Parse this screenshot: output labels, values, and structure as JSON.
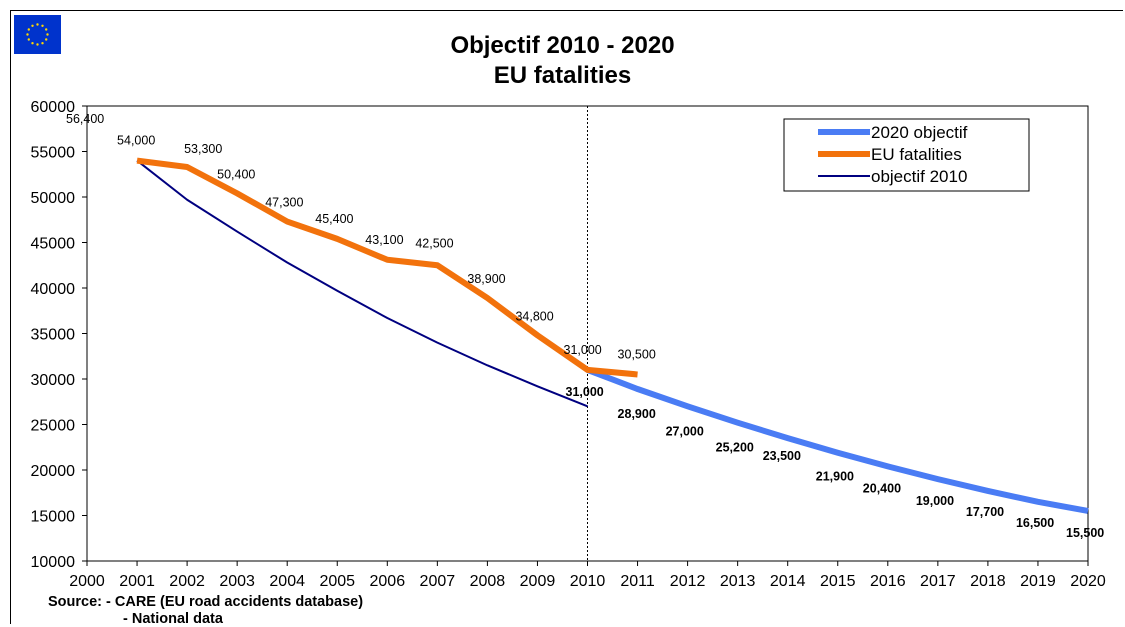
{
  "chart_data": {
    "type": "line",
    "title": "Objectif 2010 - 2020",
    "subtitle": "EU fatalities",
    "xlabel": "",
    "ylabel": "",
    "xlim": [
      2000,
      2020
    ],
    "ylim": [
      10000,
      60000
    ],
    "x_ticks": [
      2000,
      2001,
      2002,
      2003,
      2004,
      2005,
      2006,
      2007,
      2008,
      2009,
      2010,
      2011,
      2012,
      2013,
      2014,
      2015,
      2016,
      2017,
      2018,
      2019,
      2020
    ],
    "y_ticks": [
      10000,
      15000,
      20000,
      25000,
      30000,
      35000,
      40000,
      45000,
      50000,
      55000,
      60000
    ],
    "grid": false,
    "legend_position": "top-right",
    "reference_line_x": 2010,
    "series": [
      {
        "name": "2020 objectif",
        "color": "#4a7cf4",
        "x": [
          2010,
          2011,
          2012,
          2013,
          2014,
          2015,
          2016,
          2017,
          2018,
          2019,
          2020
        ],
        "values": [
          31000,
          28900,
          27000,
          25200,
          23500,
          21900,
          20400,
          19000,
          17700,
          16500,
          15500
        ],
        "labels": [
          "31,000",
          "28,900",
          "27,000",
          "25,200",
          "23,500",
          "21,900",
          "20,400",
          "19,000",
          "17,700",
          "16,500",
          "15,500"
        ]
      },
      {
        "name": "EU fatalities",
        "color": "#f2720c",
        "x": [
          2001,
          2002,
          2003,
          2004,
          2005,
          2006,
          2007,
          2008,
          2009,
          2010,
          2011
        ],
        "values": [
          54000,
          53300,
          50400,
          47300,
          45400,
          43100,
          42500,
          38900,
          34800,
          31000,
          30500
        ],
        "labels": [
          "54,000",
          "53,300",
          "50,400",
          "47,300",
          "45,400",
          "43,100",
          "42,500",
          "38,900",
          "34,800",
          "31,000",
          "30,500"
        ]
      },
      {
        "name": "objectif 2010",
        "color": "#000080",
        "x": [
          2001,
          2002,
          2003,
          2004,
          2005,
          2006,
          2007,
          2008,
          2009,
          2010
        ],
        "values": [
          54000,
          49700,
          46200,
          42800,
          39700,
          36700,
          34000,
          31500,
          29200,
          27000
        ]
      }
    ],
    "annotations": [
      {
        "text": "56,400",
        "x": 2000,
        "y": 60000
      }
    ]
  },
  "source": {
    "line1": "Source: - CARE (EU road accidents database)",
    "line2": "- National data"
  }
}
